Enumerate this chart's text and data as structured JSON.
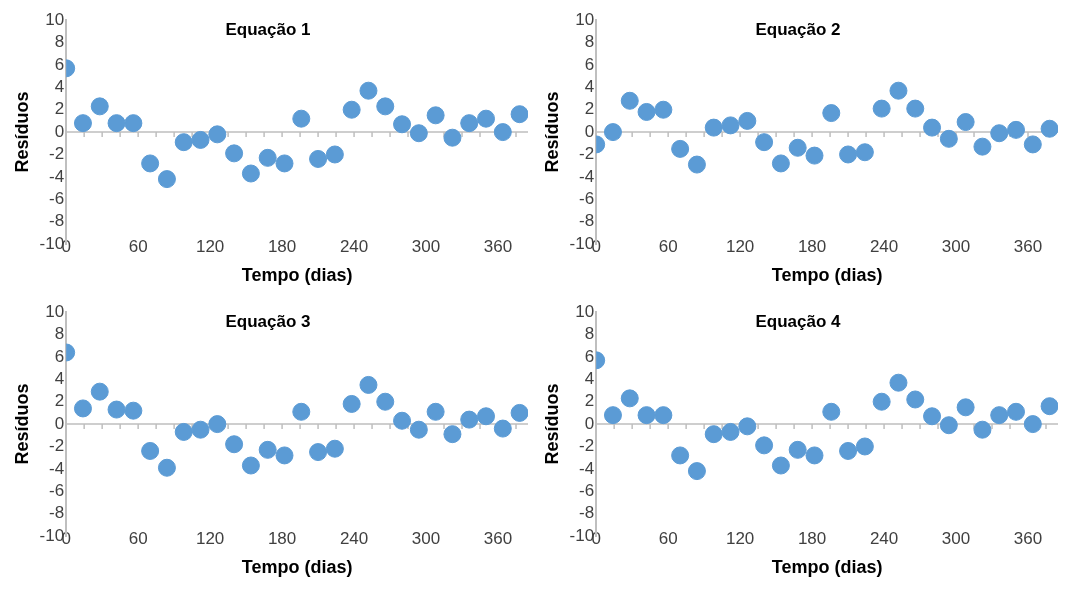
{
  "chart_data": [
    {
      "type": "scatter",
      "title": "Equação 1",
      "xlabel": "Tempo (dias)",
      "ylabel": "Resíduos",
      "color": "#5b9bd5",
      "marker": "circle",
      "xlim": [
        0,
        385
      ],
      "xticks": [
        0,
        60,
        120,
        180,
        240,
        300,
        360
      ],
      "ylim": [
        -10,
        10
      ],
      "yticks": [
        -10,
        -8,
        -6,
        -4,
        -2,
        0,
        2,
        4,
        6,
        8,
        10
      ],
      "x": [
        0,
        14,
        28,
        42,
        56,
        70,
        84,
        98,
        112,
        126,
        140,
        154,
        168,
        182,
        196,
        210,
        224,
        238,
        252,
        266,
        280,
        294,
        308,
        322,
        336,
        350,
        364,
        378
      ],
      "values": [
        5.7,
        0.8,
        2.3,
        0.8,
        0.8,
        -2.8,
        -4.2,
        -0.9,
        -0.7,
        -0.2,
        -1.9,
        -3.7,
        -2.3,
        -2.8,
        1.2,
        -2.4,
        -2.0,
        2.0,
        3.7,
        2.3,
        0.7,
        -0.1,
        1.5,
        -0.5,
        0.8,
        1.2,
        0.0,
        1.6
      ]
    },
    {
      "type": "scatter",
      "title": "Equação 2",
      "xlabel": "Tempo (dias)",
      "ylabel": "Resíduos",
      "color": "#5b9bd5",
      "marker": "circle",
      "xlim": [
        0,
        385
      ],
      "xticks": [
        0,
        60,
        120,
        180,
        240,
        300,
        360
      ],
      "ylim": [
        -10,
        10
      ],
      "yticks": [
        -10,
        -8,
        -6,
        -4,
        -2,
        0,
        2,
        4,
        6,
        8,
        10
      ],
      "x": [
        0,
        14,
        28,
        42,
        56,
        70,
        84,
        98,
        112,
        126,
        140,
        154,
        168,
        182,
        196,
        210,
        224,
        238,
        252,
        266,
        280,
        294,
        308,
        322,
        336,
        350,
        364,
        378
      ],
      "values": [
        -1.1,
        0.0,
        2.8,
        1.8,
        2.0,
        -1.5,
        -2.9,
        0.4,
        0.6,
        1.0,
        -0.9,
        -2.8,
        -1.4,
        -2.1,
        1.7,
        -2.0,
        -1.8,
        2.1,
        3.7,
        2.1,
        0.4,
        -0.6,
        0.9,
        -1.3,
        -0.1,
        0.2,
        -1.1,
        0.3
      ]
    },
    {
      "type": "scatter",
      "title": "Equação 3",
      "xlabel": "Tempo (dias)",
      "ylabel": "Resíduos",
      "color": "#5b9bd5",
      "marker": "circle",
      "xlim": [
        0,
        385
      ],
      "xticks": [
        0,
        60,
        120,
        180,
        240,
        300,
        360
      ],
      "ylim": [
        -10,
        10
      ],
      "yticks": [
        -10,
        -8,
        -6,
        -4,
        -2,
        0,
        2,
        4,
        6,
        8,
        10
      ],
      "x": [
        0,
        14,
        28,
        42,
        56,
        70,
        84,
        98,
        112,
        126,
        140,
        154,
        168,
        182,
        196,
        210,
        224,
        238,
        252,
        266,
        280,
        294,
        308,
        322,
        336,
        350,
        364,
        378
      ],
      "values": [
        6.4,
        1.4,
        2.9,
        1.3,
        1.2,
        -2.4,
        -3.9,
        -0.7,
        -0.5,
        0.0,
        -1.8,
        -3.7,
        -2.3,
        -2.8,
        1.1,
        -2.5,
        -2.2,
        1.8,
        3.5,
        2.0,
        0.3,
        -0.5,
        1.1,
        -0.9,
        0.4,
        0.7,
        -0.4,
        1.0
      ]
    },
    {
      "type": "scatter",
      "title": "Equação 4",
      "xlabel": "Tempo (dias)",
      "ylabel": "Resíduos",
      "color": "#5b9bd5",
      "marker": "circle",
      "xlim": [
        0,
        385
      ],
      "xticks": [
        0,
        60,
        120,
        180,
        240,
        300,
        360
      ],
      "ylim": [
        -10,
        10
      ],
      "yticks": [
        -10,
        -8,
        -6,
        -4,
        -2,
        0,
        2,
        4,
        6,
        8,
        10
      ],
      "x": [
        0,
        14,
        28,
        42,
        56,
        70,
        84,
        98,
        112,
        126,
        140,
        154,
        168,
        182,
        196,
        210,
        224,
        238,
        252,
        266,
        280,
        294,
        308,
        322,
        336,
        350,
        364,
        378
      ],
      "values": [
        5.7,
        0.8,
        2.3,
        0.8,
        0.8,
        -2.8,
        -4.2,
        -0.9,
        -0.7,
        -0.2,
        -1.9,
        -3.7,
        -2.3,
        -2.8,
        1.1,
        -2.4,
        -2.0,
        2.0,
        3.7,
        2.2,
        0.7,
        -0.1,
        1.5,
        -0.5,
        0.8,
        1.1,
        0.0,
        1.6
      ]
    }
  ]
}
